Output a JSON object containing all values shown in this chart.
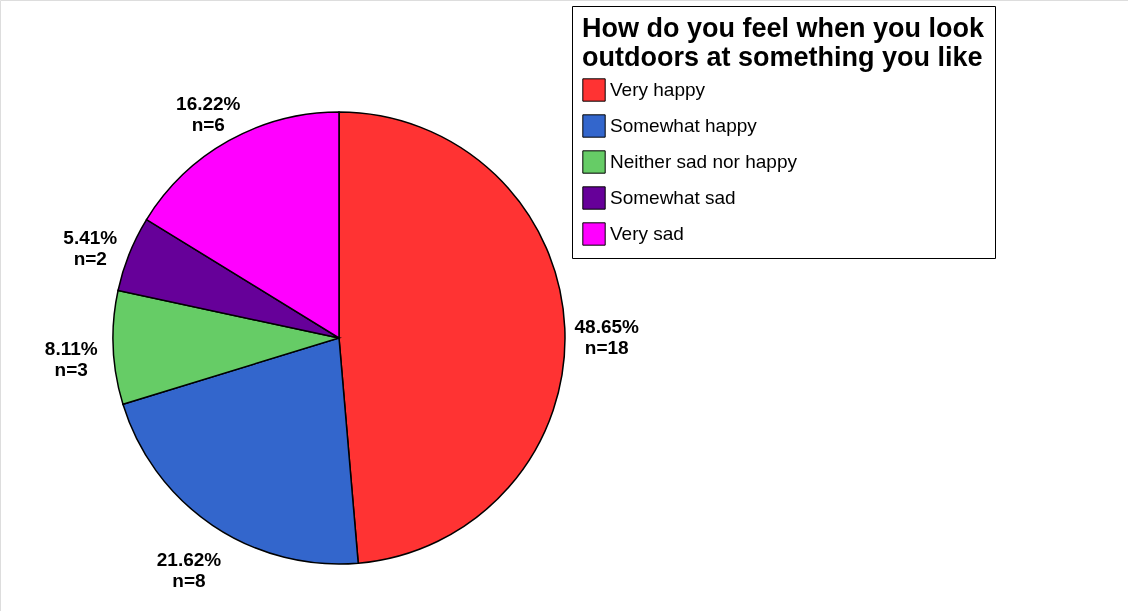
{
  "chart_data": {
    "type": "pie",
    "legend_title": "How do you feel when you look outdoors at something you like",
    "categories": [
      "Very happy",
      "Somewhat happy",
      "Neither sad nor happy",
      "Somewhat sad",
      "Very sad"
    ],
    "values": [
      48.65,
      21.62,
      8.11,
      5.41,
      16.22
    ],
    "value_labels": [
      "48.65%\nn=18",
      "21.62%\nn=8",
      "8.11%\nn=3",
      "5.41%\nn=2",
      "16.22%\nn=6"
    ],
    "colors": [
      "#ff3333",
      "#3366cc",
      "#66cc66",
      "#660099",
      "#ff00ff"
    ],
    "legend": "top right"
  }
}
